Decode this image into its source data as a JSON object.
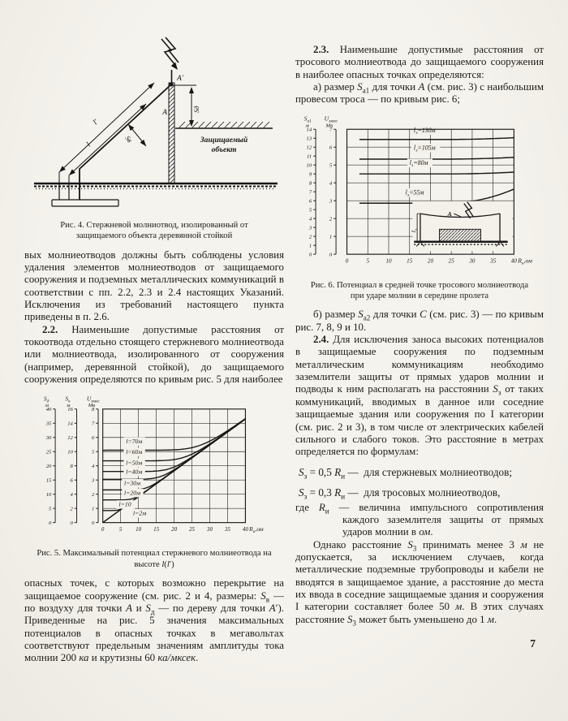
{
  "page_number": "7",
  "left": {
    "fig4_caption": "Рис. 4. Стержневой молниотвод, изолированный от защищаемого объекта деревянной стойкой",
    "para_continued": "вых молниеотводов должны быть соблюдены условия удаления элементов молниеотводов от защищаемого сооружения и подземных металлических коммуникаций в соответствии с пп. 2.2, 2.3 и 2.4 настоящих Указаний. Исключения из требований настоящего пункта приведены в п. 2.6.",
    "para_2_2": "<b>2.2.</b> Наименьшие допустимые расстояния от токоотвода отдельно стоящего стержневого молниеотвода или молниеотвода, изолированного от сооружения (например, деревянной стойкой), до защищаемого сооружения определяются по кривым рис. 5 для наиболее",
    "fig5_caption": "Рис. 5. Максимальный потенциал стержневого молниеотвода на высоте <i>l</i>(<i>l</i>′)",
    "para_after_fig5": "опасных точек, с которых возможно перекрытие на защищаемое сооружение (см. рис. 2 и 4, размеры: <i>S</i><sub>в</sub> — по воздуху для точки <i>А</i> и <i>S</i><sub>д</sub> — по дереву для точки <i>А</i>′). Приведенные на рис. 5 значения максимальных потенциалов в опасных точках в мегавольтах соответствуют предельным значениям амплитуды тока молнии 200 <i>ка</i> и крутизны 60 <i>ка/мксек</i>."
  },
  "right": {
    "para_2_3": "<b>2.3.</b> Наименьшие допустимые расстояния от тросового молниеотвода до защищаемого сооружения в наиболее опасных точках определяются:",
    "item_a": "а) размер <i>S</i><sub>а1</sub> для точки <i>А</i> (см. рис. 3) с наибольшим провесом троса — по кривым рис. 6;",
    "fig6_caption": "Рис. 6. Потенциал в средней точке тросового молниеотвода при ударе молнии в середине пролета",
    "item_b": "б) размер <i>S</i><sub>а2</sub> для точки <i>С</i> (см. рис. 3) — по кривым рис. 7, 8, 9 и 10.",
    "para_2_4": "<b>2.4.</b> Для исключения заноса высоких потенциалов в защищаемые сооружения по подземным металлическим коммуникациям необходимо заземлители защиты от прямых ударов молнии и подводы к ним располагать на расстоянии <i>S</i><sub>з</sub> от таких коммуникаций, вводимых в данное или соседние защищаемые здания или сооружения по I категории (см. рис. 2 и 3), в том числе от электрических кабелей сильного и слабого токов. Это расстояние в метрах определяется по формулам:",
    "formula_rod": "<i>S</i><sub>з</sub> = 0,5 <i>R</i><sub>и</sub> —&nbsp;&nbsp;для стержневых молниеотводов;",
    "formula_wire": "<i>S</i><sub>з</sub> = 0,3 <i>R</i><sub>и</sub> —&nbsp;&nbsp;для тросовых молниеотводов,",
    "where_note": "где <i>R</i><sub>и</sub> — величина импульсного сопротивления каждого заземлителя защиты от прямых ударов молнии в <i>ом</i>.",
    "para_final": "Однако расстояние <i>S</i><sub>3</sub> принимать менее 3 <i>м</i> не допускается, за исключением случаев, когда металлические подземные трубопроводы и кабели не вводятся в защищаемое здание, а расстояние до места их ввода в соседние защищаемые здания и сооружения I категории составляет более 50 <i>м</i>. В этих случаях расстояние <i>S</i><sub>3</sub> может быть уменьшено до 1 <i>м</i>."
  },
  "figures": {
    "fig4": {
      "a_top": "A′",
      "a_mid": "A",
      "len_outer": "l′",
      "len_inner": "l",
      "s_air": "Sв",
      "s_wood": "Sд",
      "object_line1": "Защищаемый",
      "object_line2": "объект"
    }
  },
  "colors": {
    "paper": "#f3f1ea",
    "ink": "#1b1918",
    "grid": "#34312c"
  },
  "chart_data": [
    {
      "id": "fig5",
      "type": "line",
      "title": "Максимальный потенциал стержневого молниеотвода на высоте l(l′)",
      "xlabel": {
        "sym": "R",
        "sub": "и",
        "post": ",ом"
      },
      "x_range": [
        0,
        40
      ],
      "x_ticks": [
        0,
        5,
        10,
        15,
        20,
        25,
        30,
        35,
        40
      ],
      "u_range": [
        0,
        8
      ],
      "grid": true,
      "scales": [
        {
          "sym": "S",
          "sub": "д",
          "unit": "м",
          "min": 0,
          "max": 40,
          "step": 5
        },
        {
          "sym": "S",
          "sub": "в",
          "unit": "м",
          "min": 0,
          "max": 16,
          "step": 2
        },
        {
          "sym": "U",
          "sub": "макс",
          "unit": "Мв",
          "min": 0,
          "max": 8,
          "step": 1
        }
      ],
      "diagonal": {
        "sym": "l",
        "val": "=2м",
        "end_u": 7.3,
        "label_x": 8.5,
        "label_u": 0.52
      },
      "series": [
        {
          "sym": "l",
          "val": "=70м",
          "flat": 5.1,
          "label_x": 6.5,
          "label_u": 5.58
        },
        {
          "sym": "l",
          "val": "=60м",
          "flat": 4.35,
          "label_x": 6.5,
          "label_u": 4.84
        },
        {
          "sym": "l",
          "val": "=50м",
          "flat": 3.6,
          "label_x": 6.5,
          "label_u": 4.08
        },
        {
          "sym": "l",
          "val": "=40м",
          "flat": 3.05,
          "label_x": 6.5,
          "label_u": 3.44
        },
        {
          "sym": "l",
          "val": "=30м",
          "flat": 2.3,
          "label_x": 6.0,
          "label_u": 2.64
        },
        {
          "sym": "l",
          "val": "=20м",
          "flat": 1.6,
          "label_x": 6.0,
          "label_u": 1.95
        },
        {
          "sym": "l",
          "val": "=10",
          "flat": 0.85,
          "label_x": 4.5,
          "label_u": 1.14
        }
      ]
    },
    {
      "id": "fig6",
      "type": "line",
      "title": "Потенциал в средней точке тросового молниеотвода при ударе молнии в середине пролета",
      "xlabel": {
        "sym": "R",
        "sub": "и",
        "post": ",ом"
      },
      "x_range": [
        0,
        40
      ],
      "x_ticks": [
        0,
        5,
        10,
        15,
        20,
        25,
        30,
        35,
        40
      ],
      "u_range": [
        0,
        7
      ],
      "grid": true,
      "series_start": 3,
      "rise_start": 24,
      "scales": [
        {
          "sym": "S",
          "sub": "а1",
          "unit": "м",
          "min": 0,
          "max": 14,
          "step": 1
        },
        {
          "sym": "U",
          "sub": "макс",
          "unit": "Мв",
          "min": 0,
          "max": 7,
          "step": 1
        }
      ],
      "series": [
        {
          "sym": "l",
          "sub": "э",
          "val": "=130м",
          "flat": 6.43,
          "end": 6.53,
          "label_x": 16,
          "label_u": 6.82
        },
        {
          "sym": "l",
          "sub": "э",
          "val": "=105м",
          "flat": 5.33,
          "end": 5.43,
          "label_x": 16,
          "label_u": 5.84
        },
        {
          "sym": "l",
          "sub": "э",
          "val": "=80м",
          "flat": 4.5,
          "end": 4.6,
          "label_x": 15,
          "label_u": 5.0
        },
        {
          "sym": "l",
          "sub": "э",
          "val": "=55м",
          "flat": 2.86,
          "end": 3.65,
          "label_x": 14,
          "label_u": 3.35
        }
      ],
      "inset": {
        "point": "A",
        "span_sym": "l",
        "span_sub": "э"
      }
    }
  ]
}
